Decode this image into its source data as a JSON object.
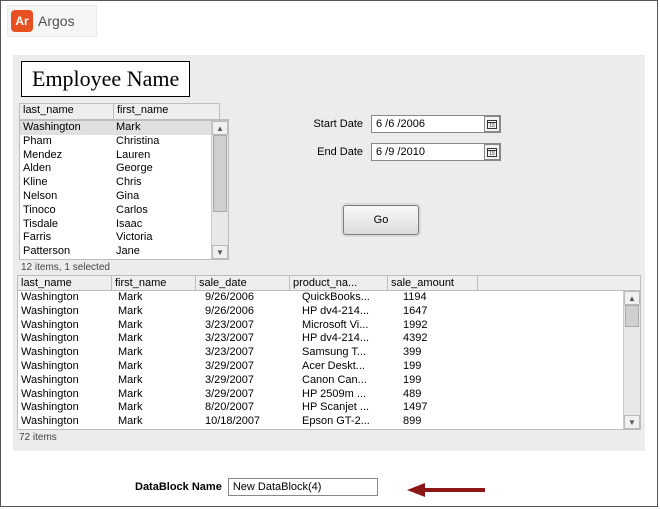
{
  "logo": {
    "badge": "Ar",
    "text": "Argos"
  },
  "emp_title": "Employee Name",
  "emp_cols": {
    "last": "last_name",
    "first": "first_name"
  },
  "employees": [
    {
      "last": "Washington",
      "first": "Mark",
      "selected": true
    },
    {
      "last": "Pham",
      "first": "Christina"
    },
    {
      "last": "Mendez",
      "first": "Lauren"
    },
    {
      "last": "Alden",
      "first": "George"
    },
    {
      "last": "Kline",
      "first": "Chris"
    },
    {
      "last": "Nelson",
      "first": "Gina"
    },
    {
      "last": "Tinoco",
      "first": "Carlos"
    },
    {
      "last": "Tisdale",
      "first": "Isaac"
    },
    {
      "last": "Farris",
      "first": "Victoria"
    },
    {
      "last": "Patterson",
      "first": "Jane"
    }
  ],
  "emp_status": "12 items, 1 selected",
  "dates": {
    "start_label": "Start Date",
    "start_value": "6 /6 /2006",
    "end_label": "End Date",
    "end_value": "6 /9 /2010"
  },
  "go_label": "Go",
  "sales_cols": {
    "last": "last_name",
    "first": "first_name",
    "date": "sale_date",
    "product": "product_na...",
    "amount": "sale_amount"
  },
  "sales": [
    {
      "last": "Washington",
      "first": "Mark",
      "date": "9/26/2006",
      "product": "QuickBooks...",
      "amount": "1194"
    },
    {
      "last": "Washington",
      "first": "Mark",
      "date": "9/26/2006",
      "product": "HP dv4-214...",
      "amount": "1647"
    },
    {
      "last": "Washington",
      "first": "Mark",
      "date": "3/23/2007",
      "product": "Microsoft Vi...",
      "amount": "1992"
    },
    {
      "last": "Washington",
      "first": "Mark",
      "date": "3/23/2007",
      "product": "HP dv4-214...",
      "amount": "4392"
    },
    {
      "last": "Washington",
      "first": "Mark",
      "date": "3/23/2007",
      "product": "Samsung T...",
      "amount": "399"
    },
    {
      "last": "Washington",
      "first": "Mark",
      "date": "3/29/2007",
      "product": "Acer Deskt...",
      "amount": "199"
    },
    {
      "last": "Washington",
      "first": "Mark",
      "date": "3/29/2007",
      "product": "Canon Can...",
      "amount": "199"
    },
    {
      "last": "Washington",
      "first": "Mark",
      "date": "3/29/2007",
      "product": "HP 2509m ...",
      "amount": "489"
    },
    {
      "last": "Washington",
      "first": "Mark",
      "date": "8/20/2007",
      "product": "HP Scanjet ...",
      "amount": "1497"
    },
    {
      "last": "Washington",
      "first": "Mark",
      "date": "10/18/2007",
      "product": "Epson GT-2...",
      "amount": "899"
    }
  ],
  "sales_status": "72 items",
  "dblock": {
    "label": "DataBlock Name",
    "value": "New DataBlock(4)"
  },
  "colors": {
    "panel_bg": "#ececec",
    "logo_bg": "#e85022",
    "arrow": "#8a1616"
  }
}
